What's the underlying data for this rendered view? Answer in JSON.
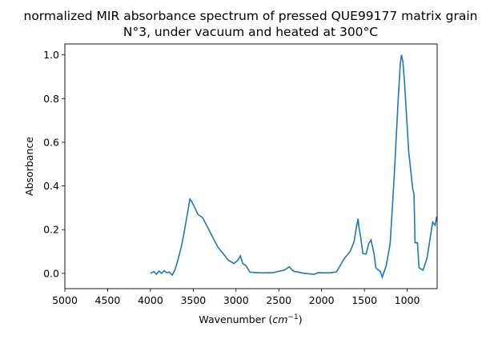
{
  "chart_data": {
    "type": "line",
    "title": [
      "normalized MIR absorbance spectrum of pressed QUE99177 matrix grain",
      "N°3, under vacuum and heated at 300°C"
    ],
    "xlabel": {
      "text": "Wavenumber (",
      "italic": "cm",
      "sup": "−1",
      "close": ")"
    },
    "ylabel": "Absorbance",
    "xlim": [
      5000,
      650
    ],
    "ylim": [
      -0.07,
      1.05
    ],
    "x_reversed": true,
    "grid": false,
    "xticks": [
      5000,
      4500,
      4000,
      3500,
      3000,
      2500,
      2000,
      1500,
      1000
    ],
    "yticks": [
      0.0,
      0.2,
      0.4,
      0.6,
      0.8,
      1.0
    ],
    "ytick_labels": [
      "0.0",
      "0.2",
      "0.4",
      "0.6",
      "0.8",
      "1.0"
    ],
    "line_color": "#1f77b4",
    "series": [
      {
        "x": [
          4000,
          3960,
          3930,
          3900,
          3870,
          3840,
          3810,
          3780,
          3745,
          3710,
          3680,
          3640,
          3605,
          3570,
          3539,
          3520,
          3493,
          3446,
          3390,
          3305,
          3212,
          3150,
          3090,
          3024,
          2978,
          2949,
          2921,
          2884,
          2837,
          2700,
          2575,
          2434,
          2378,
          2331,
          2200,
          2088,
          2041,
          1900,
          1826,
          1732,
          1667,
          1620,
          1592,
          1573,
          1564,
          1545,
          1517,
          1480,
          1451,
          1423,
          1386,
          1367,
          1311,
          1292,
          1245,
          1199,
          1152,
          1105,
          1080,
          1067,
          1050,
          1030,
          983,
          936,
          920,
          908,
          880,
          861,
          814,
          768,
          702,
          674,
          655
        ],
        "y": [
          0.0,
          0.008,
          -0.004,
          0.01,
          0.0,
          0.012,
          0.003,
          0.006,
          -0.008,
          0.02,
          0.06,
          0.12,
          0.19,
          0.27,
          0.34,
          0.33,
          0.31,
          0.27,
          0.255,
          0.19,
          0.12,
          0.09,
          0.06,
          0.045,
          0.06,
          0.08,
          0.045,
          0.035,
          0.005,
          0.002,
          0.003,
          0.015,
          0.03,
          0.01,
          0.0,
          -0.005,
          0.003,
          0.002,
          0.007,
          0.07,
          0.1,
          0.146,
          0.215,
          0.25,
          0.21,
          0.17,
          0.09,
          0.088,
          0.135,
          0.153,
          0.088,
          0.025,
          0.007,
          -0.018,
          0.036,
          0.135,
          0.44,
          0.8,
          0.96,
          1.0,
          0.97,
          0.865,
          0.56,
          0.39,
          0.36,
          0.14,
          0.14,
          0.025,
          0.015,
          0.07,
          0.235,
          0.22,
          0.26
        ]
      }
    ]
  }
}
